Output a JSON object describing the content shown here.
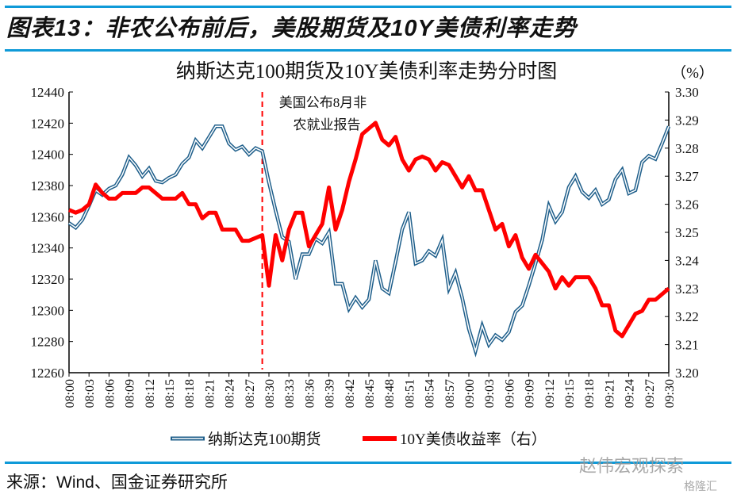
{
  "figure_title": "图表13：非农公布前后，美股期货及10Y美债利率走势",
  "source": "来源：Wind、国金证券研究所",
  "watermarks": [
    "赵伟宏观探索",
    "格隆汇"
  ],
  "colors": {
    "rule": "#0f9ad8",
    "nasdaq": "#1f5f8b",
    "yield": "#ff0000",
    "event_line": "#ff0000"
  },
  "chart_data": {
    "type": "line",
    "title": "纳斯达克100期货及10Y美债利率走势分时图",
    "right_unit": "（%）",
    "annotation": {
      "lines": [
        "美国公布8月非",
        "农就业报告"
      ],
      "at": "08:29"
    },
    "x_ticks": [
      "08:00",
      "08:03",
      "08:06",
      "08:09",
      "08:12",
      "08:15",
      "08:18",
      "08:21",
      "08:24",
      "08:27",
      "08:30",
      "08:33",
      "08:36",
      "08:39",
      "08:42",
      "08:45",
      "08:48",
      "08:51",
      "08:54",
      "08:57",
      "09:00",
      "09:03",
      "09:06",
      "09:09",
      "09:12",
      "09:15",
      "09:18",
      "09:21",
      "09:24",
      "09:27",
      "09:30"
    ],
    "x_range": [
      "08:00",
      "09:30"
    ],
    "x_interval_minutes": 1,
    "y_left": {
      "range": [
        12260,
        12440
      ],
      "ticks": [
        12260,
        12280,
        12300,
        12320,
        12340,
        12360,
        12380,
        12400,
        12420,
        12440
      ]
    },
    "y_right": {
      "range": [
        3.2,
        3.3
      ],
      "ticks": [
        "3.20",
        "3.21",
        "3.22",
        "3.23",
        "3.24",
        "3.25",
        "3.26",
        "3.27",
        "3.28",
        "3.29",
        "3.30"
      ]
    },
    "grid": false,
    "legend_position": "bottom",
    "series": [
      {
        "name": "纳斯达克100期货",
        "axis": "left",
        "style": "double-line",
        "values": [
          12356,
          12353,
          12358,
          12367,
          12377,
          12374,
          12378,
          12380,
          12387,
          12398,
          12393,
          12386,
          12391,
          12383,
          12382,
          12385,
          12387,
          12394,
          12398,
          12409,
          12404,
          12411,
          12418,
          12418,
          12407,
          12403,
          12405,
          12400,
          12404,
          12402,
          12382,
          12364,
          12347,
          12344,
          12320,
          12336,
          12336,
          12346,
          12343,
          12350,
          12317,
          12317,
          12301,
          12308,
          12302,
          12307,
          12332,
          12314,
          12311,
          12331,
          12352,
          12363,
          12330,
          12332,
          12338,
          12335,
          12345,
          12314,
          12324,
          12308,
          12288,
          12274,
          12290,
          12278,
          12284,
          12281,
          12286,
          12299,
          12303,
          12316,
          12330,
          12345,
          12367,
          12357,
          12363,
          12379,
          12386,
          12376,
          12372,
          12377,
          12368,
          12371,
          12384,
          12390,
          12375,
          12377,
          12395,
          12399,
          12397,
          12407,
          12418
        ]
      },
      {
        "name": "10Y美债收益率（右）",
        "axis": "right",
        "style": "thick",
        "values": [
          3.258,
          3.257,
          3.258,
          3.26,
          3.267,
          3.264,
          3.262,
          3.262,
          3.264,
          3.264,
          3.264,
          3.266,
          3.266,
          3.264,
          3.262,
          3.262,
          3.262,
          3.264,
          3.26,
          3.26,
          3.255,
          3.257,
          3.257,
          3.251,
          3.251,
          3.251,
          3.247,
          3.247,
          3.248,
          3.249,
          3.231,
          3.249,
          3.24,
          3.251,
          3.257,
          3.257,
          3.245,
          3.249,
          3.253,
          3.266,
          3.251,
          3.258,
          3.268,
          3.276,
          3.285,
          3.287,
          3.289,
          3.283,
          3.281,
          3.284,
          3.276,
          3.272,
          3.276,
          3.277,
          3.276,
          3.272,
          3.275,
          3.274,
          3.27,
          3.266,
          3.27,
          3.265,
          3.265,
          3.258,
          3.251,
          3.253,
          3.245,
          3.249,
          3.241,
          3.237,
          3.242,
          3.239,
          3.236,
          3.23,
          3.234,
          3.231,
          3.234,
          3.234,
          3.234,
          3.23,
          3.224,
          3.224,
          3.215,
          3.213,
          3.217,
          3.221,
          3.222,
          3.226,
          3.226,
          3.228,
          3.23
        ]
      }
    ]
  }
}
